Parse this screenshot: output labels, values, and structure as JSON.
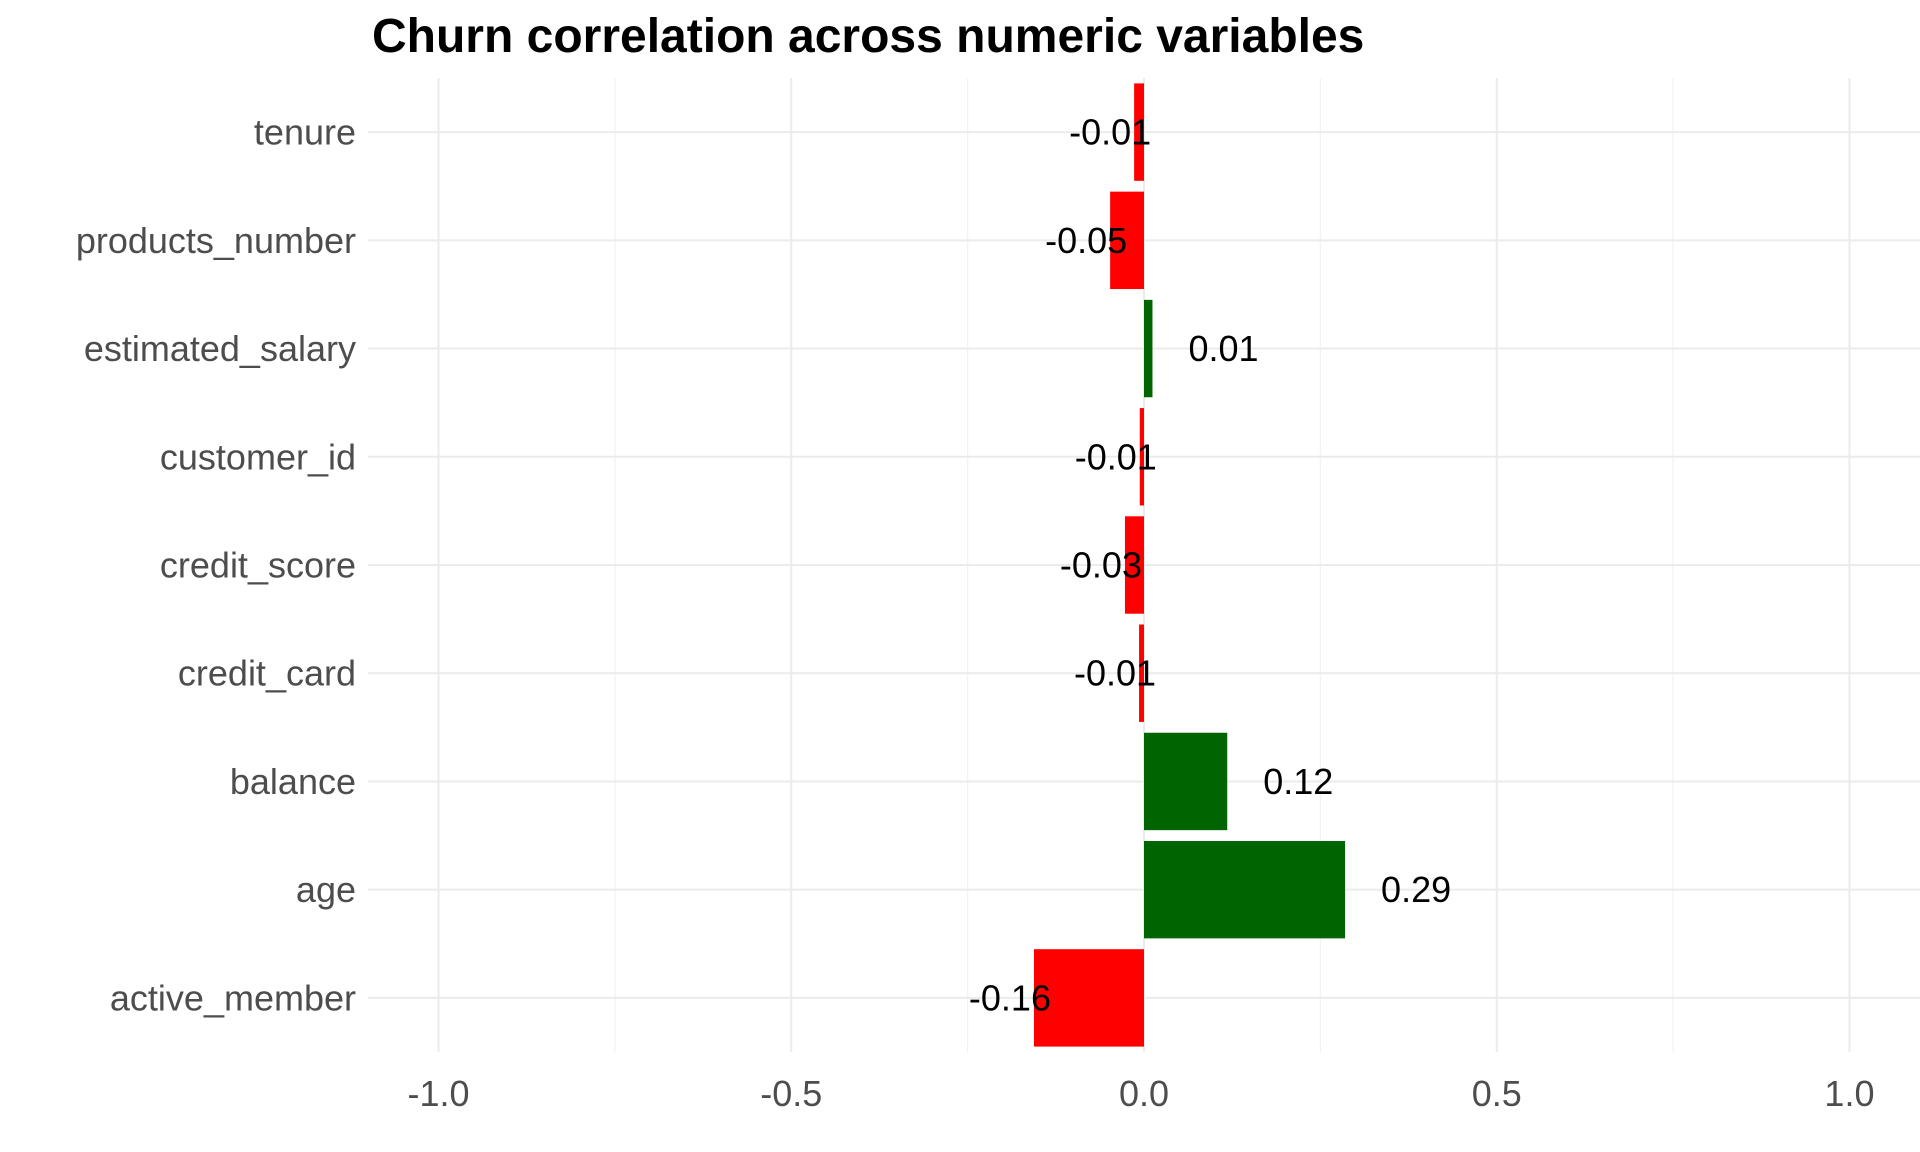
{
  "chart_data": {
    "type": "bar",
    "orientation": "horizontal",
    "title": "Churn correlation across numeric variables",
    "xlabel": "",
    "ylabel": "",
    "categories": [
      "tenure",
      "products_number",
      "estimated_salary",
      "customer_id",
      "credit_score",
      "credit_card",
      "balance",
      "age",
      "active_member"
    ],
    "values": [
      -0.014,
      -0.048,
      0.012,
      -0.006,
      -0.027,
      -0.007,
      0.118,
      0.285,
      -0.156
    ],
    "value_labels": [
      "-0.01",
      "-0.05",
      "0.01",
      "-0.01",
      "-0.03",
      "-0.01",
      "0.12",
      "0.29",
      "-0.16"
    ],
    "xlim": [
      -1.1,
      1.1
    ],
    "xticks": [
      -1.0,
      -0.5,
      0.0,
      0.5,
      1.0
    ],
    "xtick_labels": [
      "-1.0",
      "-0.5",
      "0.0",
      "0.5",
      "1.0"
    ],
    "grid": true,
    "legend": "none",
    "colors": {
      "positive": "#006400",
      "negative": "#ff0000"
    }
  }
}
